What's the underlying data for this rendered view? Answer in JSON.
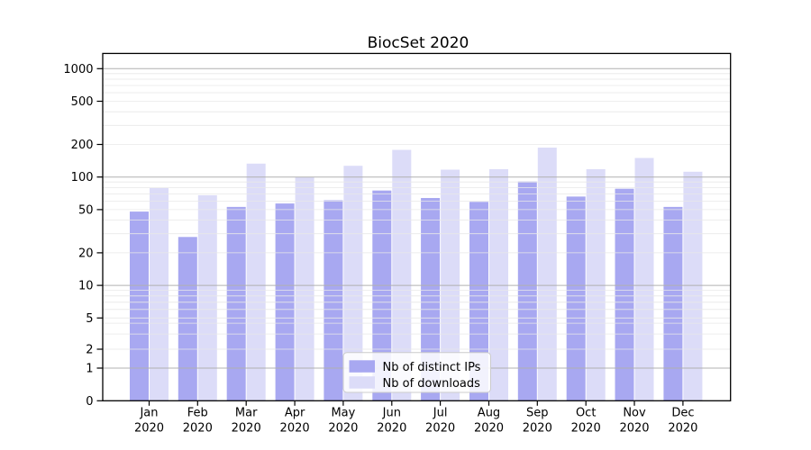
{
  "title": "BiocSet 2020",
  "year_label": "2020",
  "months": [
    "Jan",
    "Feb",
    "Mar",
    "Apr",
    "May",
    "Jun",
    "Jul",
    "Aug",
    "Sep",
    "Oct",
    "Nov",
    "Dec"
  ],
  "legend": {
    "items": [
      {
        "label": "Nb of distinct IPs",
        "color": "#a8a8f1"
      },
      {
        "label": "Nb of downloads",
        "color": "#dcdcf8"
      }
    ]
  },
  "colors": {
    "dark_bar": "#a8a8f1",
    "light_bar": "#dcdcf8",
    "major_grid": "#b0b0b0",
    "minor_grid": "#e8e8e8",
    "axis": "#000000",
    "legend_border": "#cccccc"
  },
  "chart_data": {
    "type": "bar",
    "title": "BiocSet 2020",
    "categories": [
      "Jan 2020",
      "Feb 2020",
      "Mar 2020",
      "Apr 2020",
      "May 2020",
      "Jun 2020",
      "Jul 2020",
      "Aug 2020",
      "Sep 2020",
      "Oct 2020",
      "Nov 2020",
      "Dec 2020"
    ],
    "series": [
      {
        "name": "Nb of distinct IPs",
        "color": "#a8a8f1",
        "values": [
          48,
          28,
          53,
          57,
          61,
          75,
          64,
          59,
          91,
          66,
          78,
          53
        ]
      },
      {
        "name": "Nb of downloads",
        "color": "#dcdcf8",
        "values": [
          79,
          68,
          133,
          100,
          127,
          178,
          117,
          118,
          187,
          118,
          150,
          112
        ]
      }
    ],
    "xlabel": "",
    "ylabel": "",
    "yscale": "symlog",
    "yticks": [
      0,
      1,
      2,
      5,
      10,
      20,
      50,
      100,
      200,
      500,
      1000
    ],
    "ylim": [
      0,
      1380
    ],
    "grid": true,
    "legend_position": "lower center inside"
  }
}
